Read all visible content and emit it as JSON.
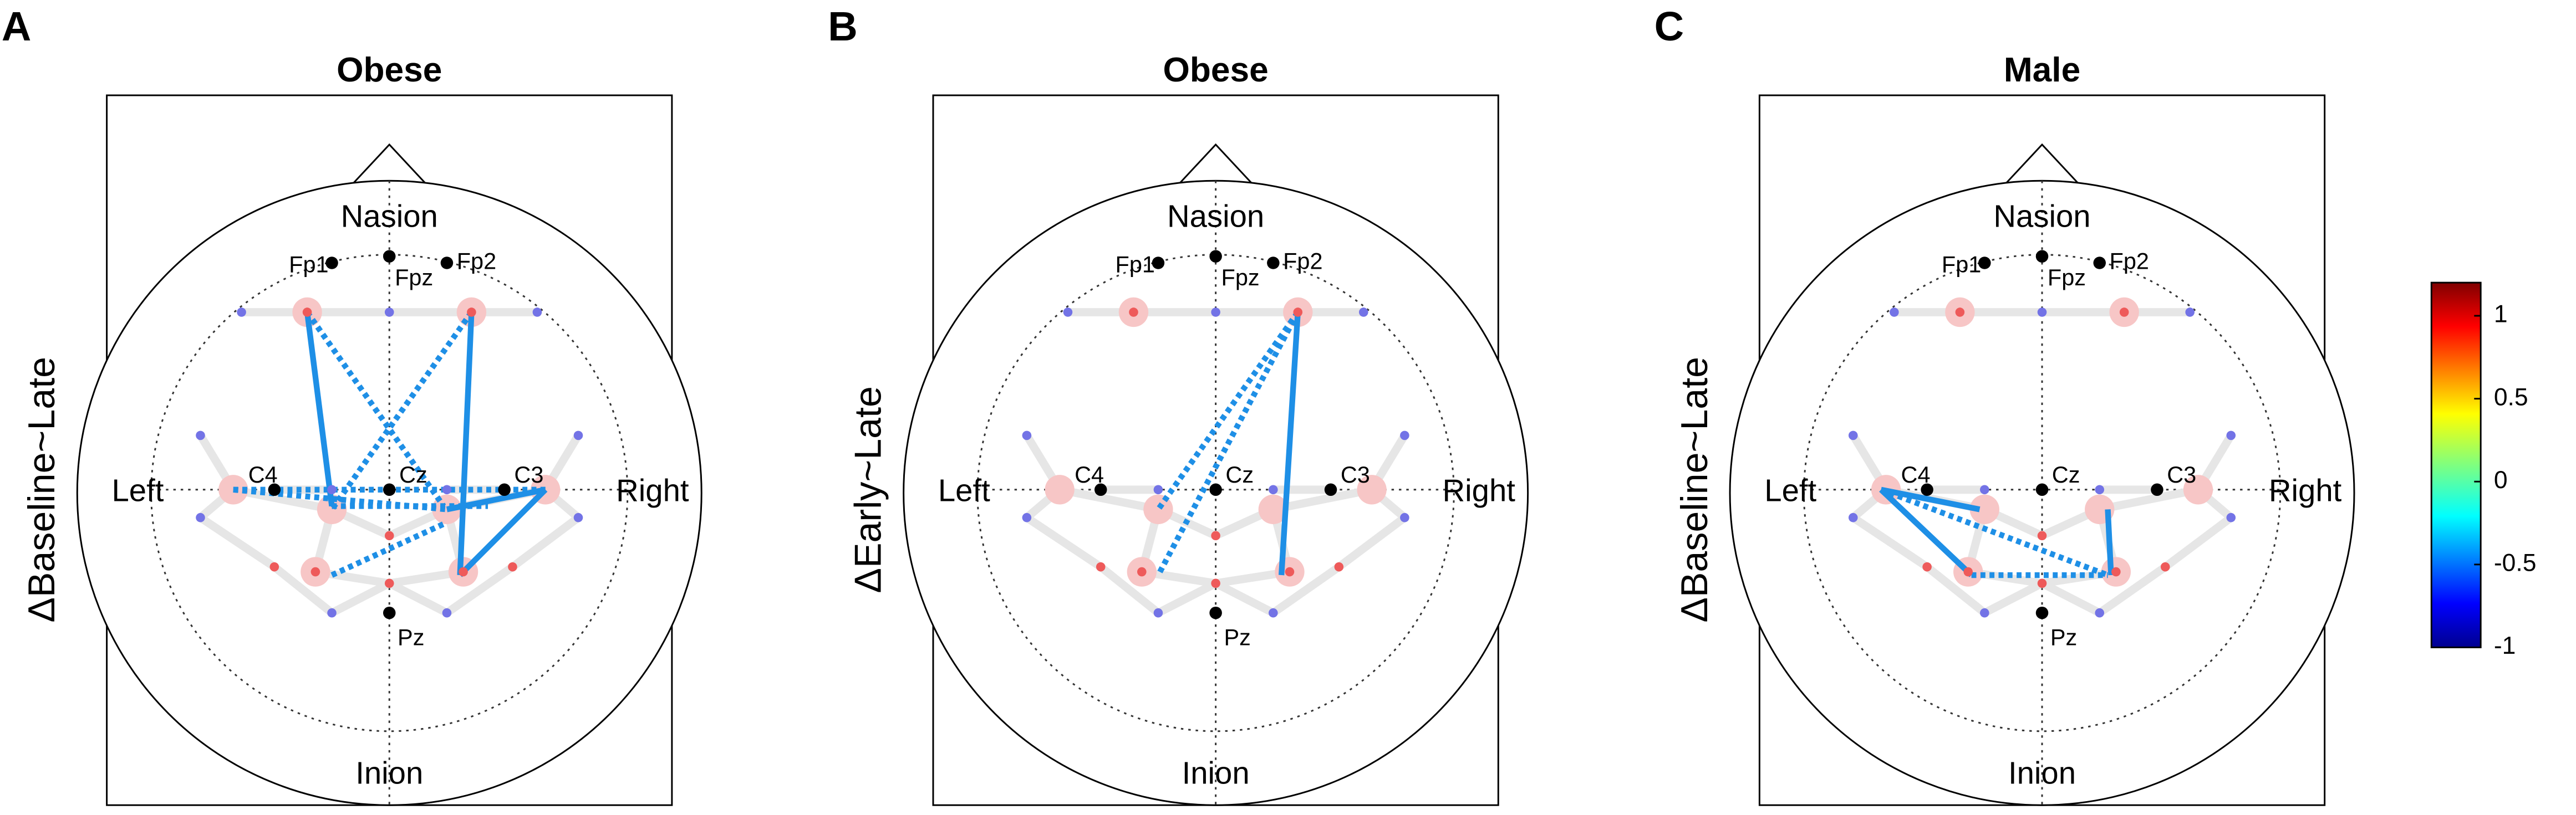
{
  "panels": [
    {
      "letter": "A",
      "title": "Obese",
      "ylabel": "ΔBaseline~Late",
      "landmarks": [
        "Nasion",
        "Inion",
        "Left",
        "Right"
      ],
      "electrodes": [
        "Fp1",
        "Fpz",
        "Fp2",
        "C4",
        "Cz",
        "C3",
        "Pz"
      ]
    },
    {
      "letter": "B",
      "title": "Obese",
      "ylabel": "ΔEarly~Late",
      "landmarks": [
        "Nasion",
        "Inion",
        "Left",
        "Right"
      ],
      "electrodes": [
        "Fp1",
        "Fpz",
        "Fp2",
        "C4",
        "Cz",
        "C3",
        "Pz"
      ]
    },
    {
      "letter": "C",
      "title": "Male",
      "ylabel": "ΔBaseline~Late",
      "landmarks": [
        "Nasion",
        "Inion",
        "Left",
        "Right"
      ],
      "electrodes": [
        "Fp1",
        "Fpz",
        "Fp2",
        "C4",
        "Cz",
        "C3",
        "Pz"
      ]
    }
  ],
  "colorbar": {
    "lim": [
      -1,
      1.2
    ],
    "ticks": [
      -1,
      -0.5,
      0,
      0.5,
      1
    ]
  }
}
